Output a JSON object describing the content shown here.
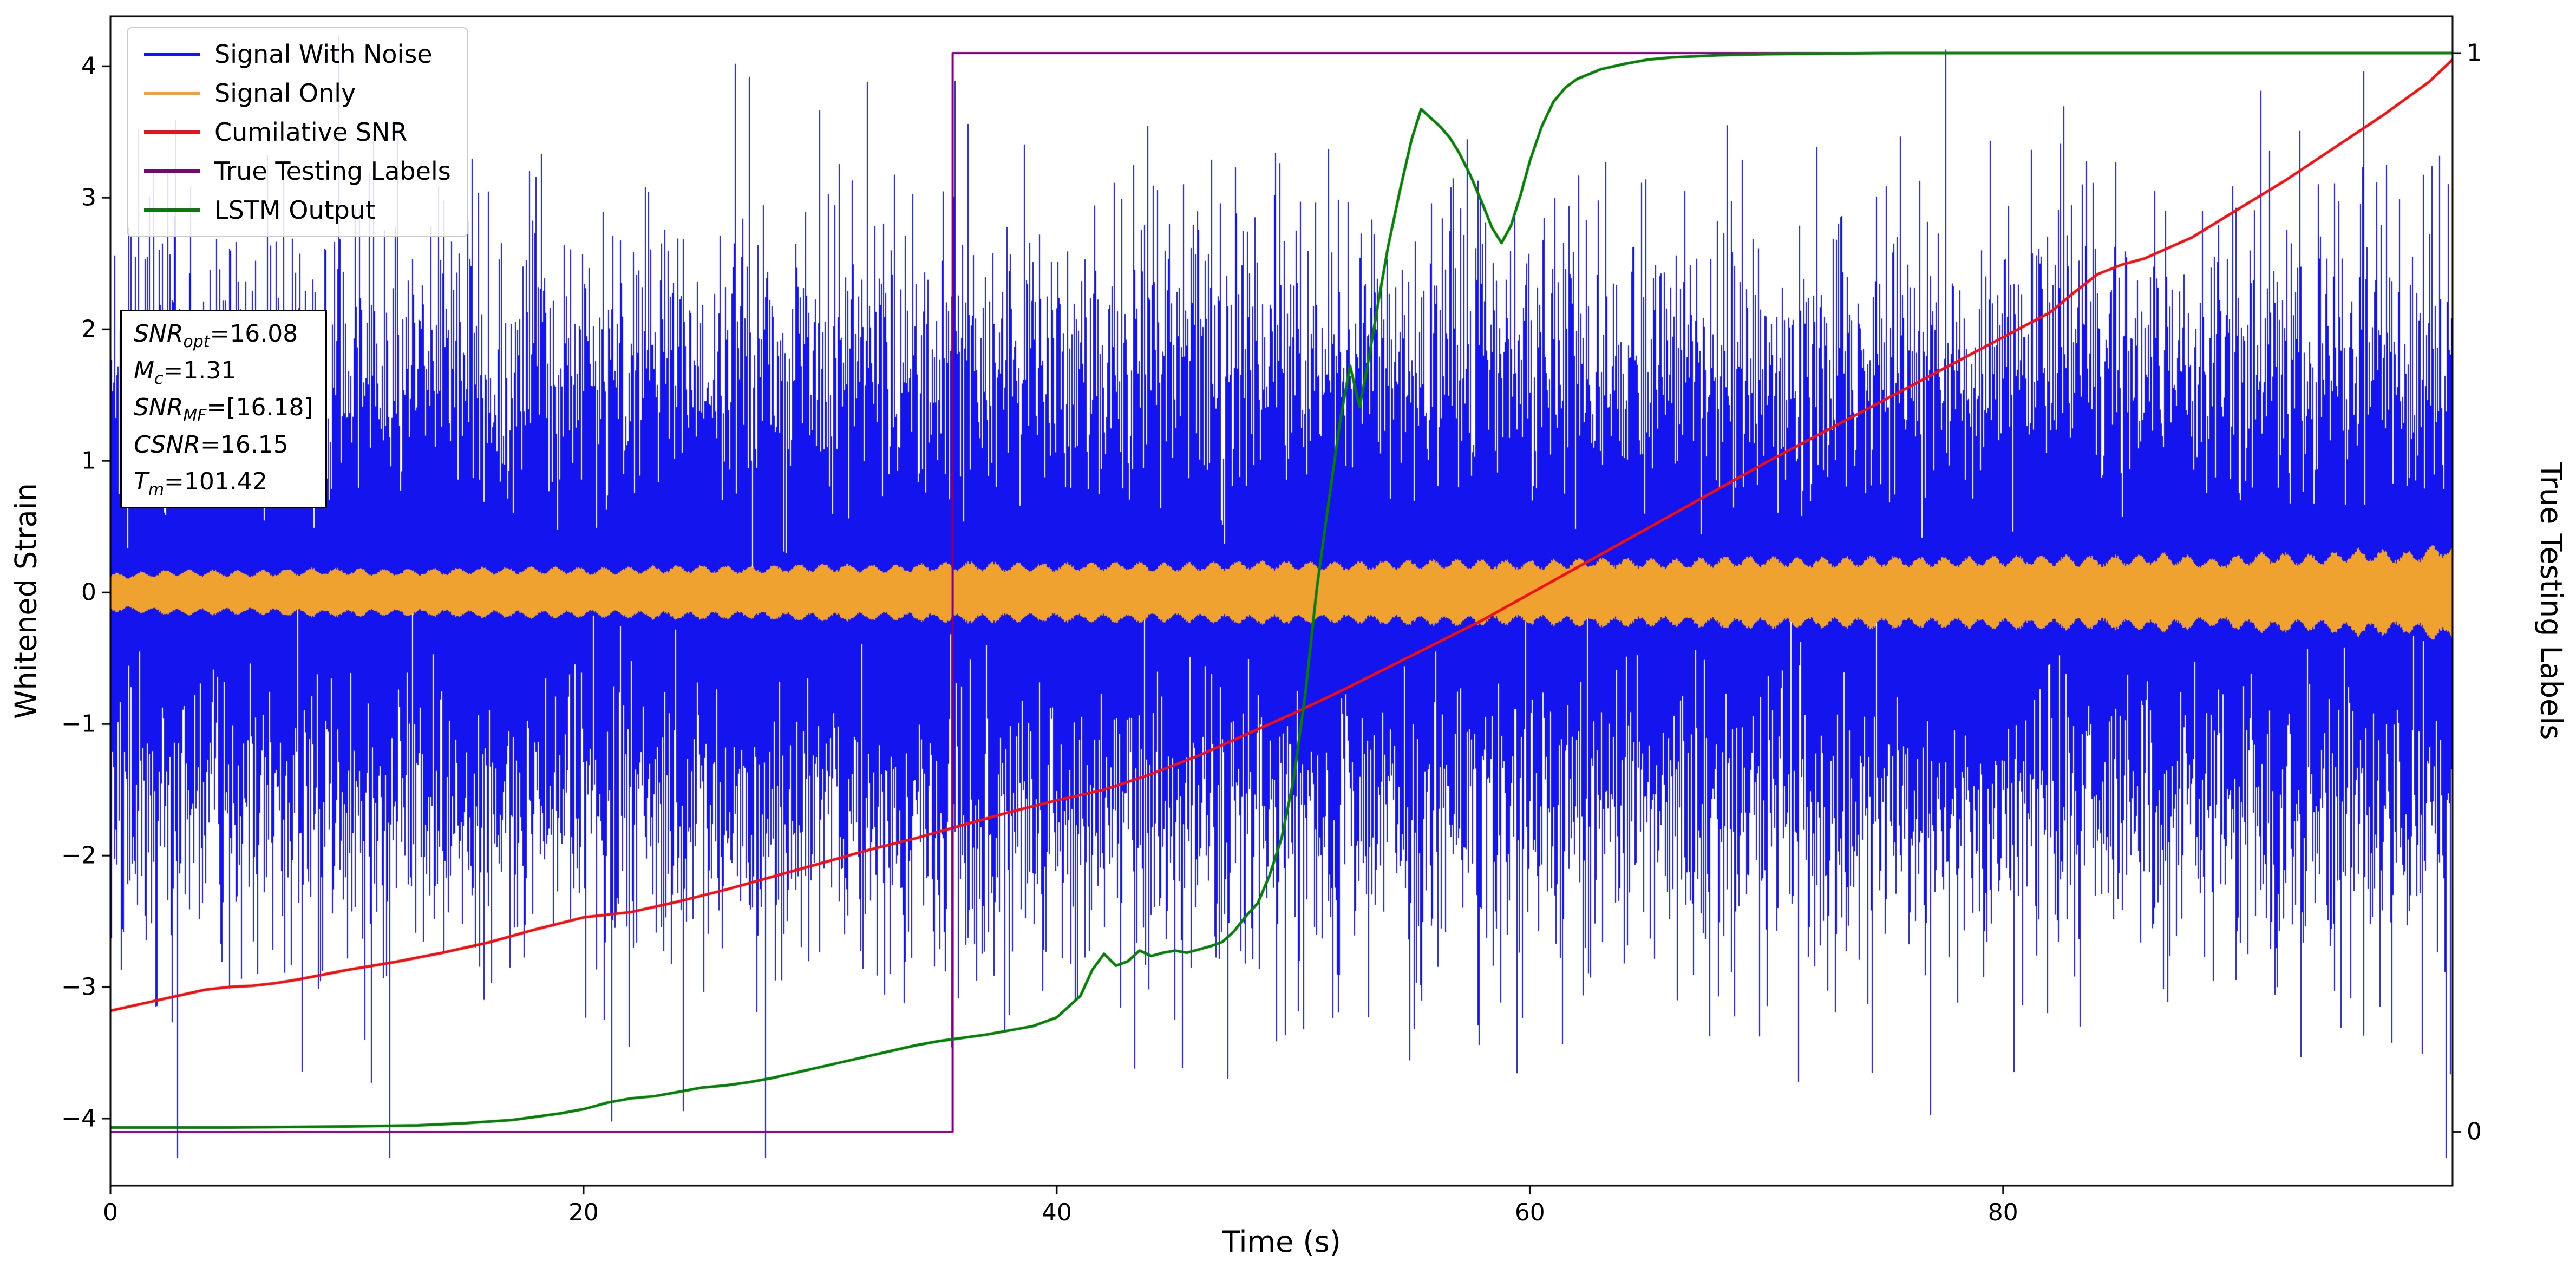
{
  "figure": {
    "background": "#ffffff"
  },
  "chart_data": {
    "type": "line",
    "title": "",
    "xlabel": "Time (s)",
    "ylabel_left": "Whitened Strain",
    "ylabel_right": "True Testing Labels",
    "axes": {
      "xlim": [
        0,
        99
      ],
      "ylim_left": [
        -4.51,
        4.38
      ],
      "right_axis_mapping": {
        "label0_at_left_value": -4.1,
        "label1_at_left_value": 4.1
      },
      "x_ticks": [
        {
          "v": 0,
          "label": "0"
        },
        {
          "v": 20,
          "label": "20"
        },
        {
          "v": 40,
          "label": "40"
        },
        {
          "v": 60,
          "label": "60"
        },
        {
          "v": 80,
          "label": "80"
        }
      ],
      "y_ticks_left": [
        {
          "v": -4,
          "label": "−4"
        },
        {
          "v": -3,
          "label": "−3"
        },
        {
          "v": -2,
          "label": "−2"
        },
        {
          "v": -1,
          "label": "−1"
        },
        {
          "v": 0,
          "label": "0"
        },
        {
          "v": 1,
          "label": "1"
        },
        {
          "v": 2,
          "label": "2"
        },
        {
          "v": 3,
          "label": "3"
        },
        {
          "v": 4,
          "label": "4"
        }
      ],
      "y_ticks_right": [
        {
          "u": 0,
          "label": "0"
        },
        {
          "u": 1,
          "label": "1"
        }
      ],
      "grid": false
    },
    "legend": {
      "position": "upper-left",
      "items": [
        {
          "label": "Signal With Noise",
          "color": "#1414ee"
        },
        {
          "label": "Signal Only",
          "color": "#efa22f"
        },
        {
          "label": "Cumilative SNR",
          "color": "#ee1111"
        },
        {
          "label": "True Testing Labels",
          "color": "#800080"
        },
        {
          "label": "LSTM Output",
          "color": "#077d07"
        }
      ]
    },
    "series": {
      "signal_with_noise": {
        "type": "gaussian-noise",
        "color": "#1414ee",
        "std": 1.1,
        "samples_per_column": 12,
        "seed": 1337,
        "clip": 4.3
      },
      "signal_only": {
        "type": "envelope-band",
        "color": "#efa22f",
        "points": [
          [
            0,
            0.13
          ],
          [
            3,
            0.16
          ],
          [
            6,
            0.15
          ],
          [
            9,
            0.17
          ],
          [
            12,
            0.16
          ],
          [
            15,
            0.17
          ],
          [
            18,
            0.18
          ],
          [
            21,
            0.17
          ],
          [
            24,
            0.19
          ],
          [
            27,
            0.18
          ],
          [
            30,
            0.2
          ],
          [
            33,
            0.19
          ],
          [
            36,
            0.21
          ],
          [
            39,
            0.2
          ],
          [
            42,
            0.21
          ],
          [
            45,
            0.2
          ],
          [
            48,
            0.22
          ],
          [
            51,
            0.21
          ],
          [
            54,
            0.22
          ],
          [
            57,
            0.23
          ],
          [
            60,
            0.22
          ],
          [
            63,
            0.24
          ],
          [
            66,
            0.23
          ],
          [
            69,
            0.25
          ],
          [
            72,
            0.24
          ],
          [
            75,
            0.25
          ],
          [
            78,
            0.24
          ],
          [
            81,
            0.26
          ],
          [
            84,
            0.25
          ],
          [
            87,
            0.27
          ],
          [
            89,
            0.23
          ],
          [
            91,
            0.28
          ],
          [
            93,
            0.26
          ],
          [
            95,
            0.3
          ],
          [
            97,
            0.28
          ],
          [
            98.5,
            0.33
          ],
          [
            99,
            0.35
          ]
        ]
      },
      "cumulative_snr": {
        "type": "line",
        "color": "#ee1111",
        "points": [
          [
            0,
            -3.18
          ],
          [
            2,
            -3.1
          ],
          [
            3,
            -3.06
          ],
          [
            4,
            -3.02
          ],
          [
            5,
            -3.0
          ],
          [
            6,
            -2.99
          ],
          [
            7,
            -2.97
          ],
          [
            8,
            -2.94
          ],
          [
            10,
            -2.87
          ],
          [
            12,
            -2.81
          ],
          [
            14,
            -2.74
          ],
          [
            16,
            -2.66
          ],
          [
            18,
            -2.56
          ],
          [
            20,
            -2.47
          ],
          [
            22,
            -2.43
          ],
          [
            24,
            -2.35
          ],
          [
            26,
            -2.26
          ],
          [
            28,
            -2.16
          ],
          [
            30,
            -2.06
          ],
          [
            32,
            -1.96
          ],
          [
            34,
            -1.87
          ],
          [
            35,
            -1.82
          ],
          [
            36,
            -1.77
          ],
          [
            38,
            -1.67
          ],
          [
            40,
            -1.58
          ],
          [
            42,
            -1.5
          ],
          [
            44,
            -1.38
          ],
          [
            46,
            -1.24
          ],
          [
            48,
            -1.08
          ],
          [
            50,
            -0.92
          ],
          [
            52,
            -0.75
          ],
          [
            54,
            -0.57
          ],
          [
            56,
            -0.39
          ],
          [
            58,
            -0.21
          ],
          [
            60,
            -0.01
          ],
          [
            62,
            0.19
          ],
          [
            64,
            0.39
          ],
          [
            66,
            0.59
          ],
          [
            68,
            0.79
          ],
          [
            70,
            0.99
          ],
          [
            72,
            1.18
          ],
          [
            74,
            1.37
          ],
          [
            76,
            1.56
          ],
          [
            78,
            1.75
          ],
          [
            80,
            1.94
          ],
          [
            82,
            2.13
          ],
          [
            83,
            2.28
          ],
          [
            84,
            2.42
          ],
          [
            85,
            2.49
          ],
          [
            86,
            2.54
          ],
          [
            88,
            2.7
          ],
          [
            90,
            2.92
          ],
          [
            92,
            3.14
          ],
          [
            94,
            3.38
          ],
          [
            96,
            3.62
          ],
          [
            98,
            3.88
          ],
          [
            99,
            4.05
          ]
        ]
      },
      "true_testing_labels": {
        "type": "step",
        "color": "#800080",
        "step_time": 35.6,
        "low": 0,
        "high": 1,
        "draw_low_at": -4.1,
        "draw_high_at": 4.1
      },
      "lstm_output": {
        "type": "line-right-axis",
        "color": "#077d07",
        "points": [
          [
            0,
            0.004
          ],
          [
            5,
            0.004
          ],
          [
            10,
            0.005
          ],
          [
            13,
            0.006
          ],
          [
            15,
            0.008
          ],
          [
            17,
            0.011
          ],
          [
            18,
            0.014
          ],
          [
            19,
            0.017
          ],
          [
            20,
            0.021
          ],
          [
            21,
            0.027
          ],
          [
            22,
            0.031
          ],
          [
            23,
            0.033
          ],
          [
            24,
            0.037
          ],
          [
            25,
            0.041
          ],
          [
            26,
            0.043
          ],
          [
            27,
            0.046
          ],
          [
            28,
            0.05
          ],
          [
            29,
            0.055
          ],
          [
            30,
            0.06
          ],
          [
            31,
            0.065
          ],
          [
            32,
            0.07
          ],
          [
            33,
            0.075
          ],
          [
            34,
            0.08
          ],
          [
            35,
            0.084
          ],
          [
            36,
            0.087
          ],
          [
            37,
            0.09
          ],
          [
            38,
            0.094
          ],
          [
            39,
            0.098
          ],
          [
            40,
            0.106
          ],
          [
            41,
            0.126
          ],
          [
            41.5,
            0.15
          ],
          [
            42,
            0.165
          ],
          [
            42.5,
            0.154
          ],
          [
            43,
            0.158
          ],
          [
            43.5,
            0.168
          ],
          [
            44,
            0.163
          ],
          [
            44.5,
            0.166
          ],
          [
            45,
            0.168
          ],
          [
            45.5,
            0.166
          ],
          [
            46,
            0.169
          ],
          [
            46.5,
            0.172
          ],
          [
            47,
            0.176
          ],
          [
            47.5,
            0.186
          ],
          [
            48,
            0.2
          ],
          [
            48.5,
            0.212
          ],
          [
            49,
            0.238
          ],
          [
            49.5,
            0.272
          ],
          [
            50,
            0.325
          ],
          [
            50.5,
            0.405
          ],
          [
            51,
            0.505
          ],
          [
            51.5,
            0.585
          ],
          [
            52,
            0.662
          ],
          [
            52.4,
            0.71
          ],
          [
            52.8,
            0.672
          ],
          [
            53.2,
            0.718
          ],
          [
            53.6,
            0.77
          ],
          [
            54,
            0.82
          ],
          [
            54.5,
            0.872
          ],
          [
            55,
            0.92
          ],
          [
            55.4,
            0.948
          ],
          [
            55.8,
            0.94
          ],
          [
            56.2,
            0.932
          ],
          [
            56.6,
            0.922
          ],
          [
            57,
            0.908
          ],
          [
            57.5,
            0.886
          ],
          [
            58,
            0.86
          ],
          [
            58.4,
            0.838
          ],
          [
            58.8,
            0.824
          ],
          [
            59.2,
            0.84
          ],
          [
            59.6,
            0.868
          ],
          [
            60,
            0.9
          ],
          [
            60.5,
            0.932
          ],
          [
            61,
            0.955
          ],
          [
            61.5,
            0.968
          ],
          [
            62,
            0.976
          ],
          [
            63,
            0.985
          ],
          [
            64,
            0.99
          ],
          [
            65,
            0.994
          ],
          [
            66,
            0.996
          ],
          [
            68,
            0.998
          ],
          [
            70,
            0.999
          ],
          [
            75,
            1.0
          ],
          [
            80,
            1.0
          ],
          [
            85,
            1.0
          ],
          [
            90,
            1.0
          ],
          [
            95,
            1.0
          ],
          [
            99,
            1.0
          ]
        ]
      }
    },
    "annotation": {
      "lines": [
        {
          "name": "SNR",
          "sub": "opt",
          "rest": "=16.08"
        },
        {
          "name": "M",
          "sub": "c",
          "rest": "=1.31"
        },
        {
          "name": "SNR",
          "sub": "MF",
          "rest": "=[16.18]"
        },
        {
          "name": "CSNR",
          "sub": "",
          "rest": "=16.15"
        },
        {
          "name": "T",
          "sub": "m",
          "rest": "=101.42"
        }
      ]
    }
  }
}
